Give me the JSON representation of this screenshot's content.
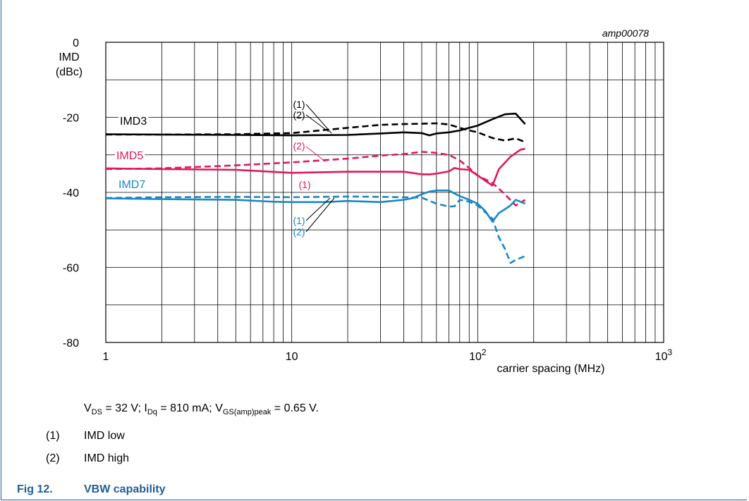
{
  "figure": {
    "id_label": "amp00078",
    "caption_number": "Fig 12.",
    "caption_title": "VBW capability"
  },
  "conditions": {
    "vds_var": "V",
    "vds_sub": "DS",
    "vds_val": " = 32 V; ",
    "idq_var": "I",
    "idq_sub": "Dq",
    "idq_val": " = 810 mA; ",
    "vgs_var": "V",
    "vgs_sub": "GS(amp)peak",
    "vgs_val": " = 0.65 V."
  },
  "notes": [
    {
      "num": "(1)",
      "text": "IMD low"
    },
    {
      "num": "(2)",
      "text": "IMD high"
    }
  ],
  "colors": {
    "IMD3": "#000000",
    "IMD5": "#e0195a",
    "IMD7": "#1a87c4",
    "caption": "#1f5f96"
  },
  "chart_data": {
    "type": "line",
    "xscale": "log",
    "xlim": [
      1,
      1000
    ],
    "ylim": [
      -80,
      0
    ],
    "grid": true,
    "ylabel_line1": "IMD",
    "ylabel_line2": "(dBc)",
    "xlabel": "carrier spacing (MHz)",
    "yticks": [
      "0",
      "-20",
      "-40",
      "-60",
      "-80"
    ],
    "xticks": [
      {
        "value": 1,
        "base": "1",
        "sup": ""
      },
      {
        "value": 10,
        "base": "10",
        "sup": ""
      },
      {
        "value": 100,
        "base": "10",
        "sup": "2"
      },
      {
        "value": 1000,
        "base": "10",
        "sup": "3"
      }
    ],
    "group_labels": [
      "IMD3",
      "IMD5",
      "IMD7"
    ],
    "annotation_labels": [
      "(1)",
      "(2)"
    ],
    "series": [
      {
        "name": "IMD3 (1)",
        "group": "IMD3",
        "style": "solid",
        "x": [
          1,
          2,
          5,
          10,
          20,
          30,
          40,
          50,
          55,
          60,
          70,
          80,
          90,
          100,
          120,
          140,
          160,
          180
        ],
        "y": [
          -24.5,
          -24.6,
          -24.7,
          -24.8,
          -24.7,
          -24.3,
          -24.0,
          -24.2,
          -24.8,
          -24.3,
          -24.0,
          -23.5,
          -22.8,
          -22.2,
          -20.5,
          -19.2,
          -19.0,
          -21.8
        ]
      },
      {
        "name": "IMD3 (2)",
        "group": "IMD3",
        "style": "dashed",
        "x": [
          1,
          2,
          5,
          10,
          20,
          30,
          40,
          50,
          60,
          70,
          80,
          90,
          100,
          120,
          140,
          160,
          180
        ],
        "y": [
          -24.6,
          -24.6,
          -24.5,
          -24.2,
          -22.8,
          -22.0,
          -21.8,
          -21.7,
          -21.6,
          -21.9,
          -22.8,
          -23.5,
          -24.0,
          -25.5,
          -26.2,
          -25.6,
          -26.6
        ]
      },
      {
        "name": "IMD5 (1)",
        "group": "IMD5",
        "style": "solid",
        "x": [
          1,
          2,
          5,
          10,
          20,
          30,
          40,
          50,
          55,
          60,
          70,
          75,
          80,
          90,
          100,
          120,
          130,
          150,
          170,
          180
        ],
        "y": [
          -33.6,
          -33.8,
          -34.0,
          -34.8,
          -34.5,
          -34.5,
          -34.5,
          -35.2,
          -35.2,
          -35.0,
          -34.4,
          -33.5,
          -33.8,
          -34.0,
          -35.5,
          -38.2,
          -33.8,
          -30.5,
          -28.6,
          -28.4
        ]
      },
      {
        "name": "IMD5 (2)",
        "group": "IMD5",
        "style": "dashed",
        "x": [
          1,
          2,
          5,
          10,
          20,
          30,
          40,
          50,
          55,
          60,
          70,
          80,
          90,
          100,
          120,
          140,
          160,
          180
        ],
        "y": [
          -33.8,
          -33.6,
          -32.8,
          -32.0,
          -31.0,
          -30.2,
          -29.8,
          -29.2,
          -29.3,
          -29.5,
          -30.0,
          -31.5,
          -33.5,
          -35.5,
          -37.5,
          -40.5,
          -43.5,
          -42.0
        ]
      },
      {
        "name": "IMD7 (1)",
        "group": "IMD7",
        "style": "solid",
        "x": [
          1,
          2,
          5,
          8,
          10,
          15,
          20,
          30,
          40,
          45,
          50,
          55,
          60,
          70,
          80,
          90,
          100,
          110,
          120,
          130,
          140,
          150,
          160,
          170,
          180
        ],
        "y": [
          -41.6,
          -41.8,
          -42.0,
          -42.5,
          -42.6,
          -42.6,
          -42.3,
          -42.6,
          -42.0,
          -41.5,
          -40.5,
          -39.8,
          -39.5,
          -39.5,
          -41.0,
          -42.0,
          -43.0,
          -45.0,
          -47.8,
          -45.5,
          -44.5,
          -43.5,
          -42.0,
          -42.5,
          -43.0
        ]
      },
      {
        "name": "IMD7 (2)",
        "group": "IMD7",
        "style": "dashed",
        "x": [
          1,
          2,
          5,
          10,
          20,
          30,
          40,
          50,
          60,
          70,
          75,
          80,
          90,
          100,
          120,
          130,
          140,
          150,
          160,
          180
        ],
        "y": [
          -41.5,
          -41.3,
          -41.2,
          -41.3,
          -41.1,
          -41.2,
          -41.3,
          -41.4,
          -43.0,
          -43.8,
          -43.7,
          -42.0,
          -42.5,
          -43.5,
          -47.0,
          -52.0,
          -55.0,
          -58.8,
          -58.0,
          -57.0
        ]
      }
    ]
  }
}
